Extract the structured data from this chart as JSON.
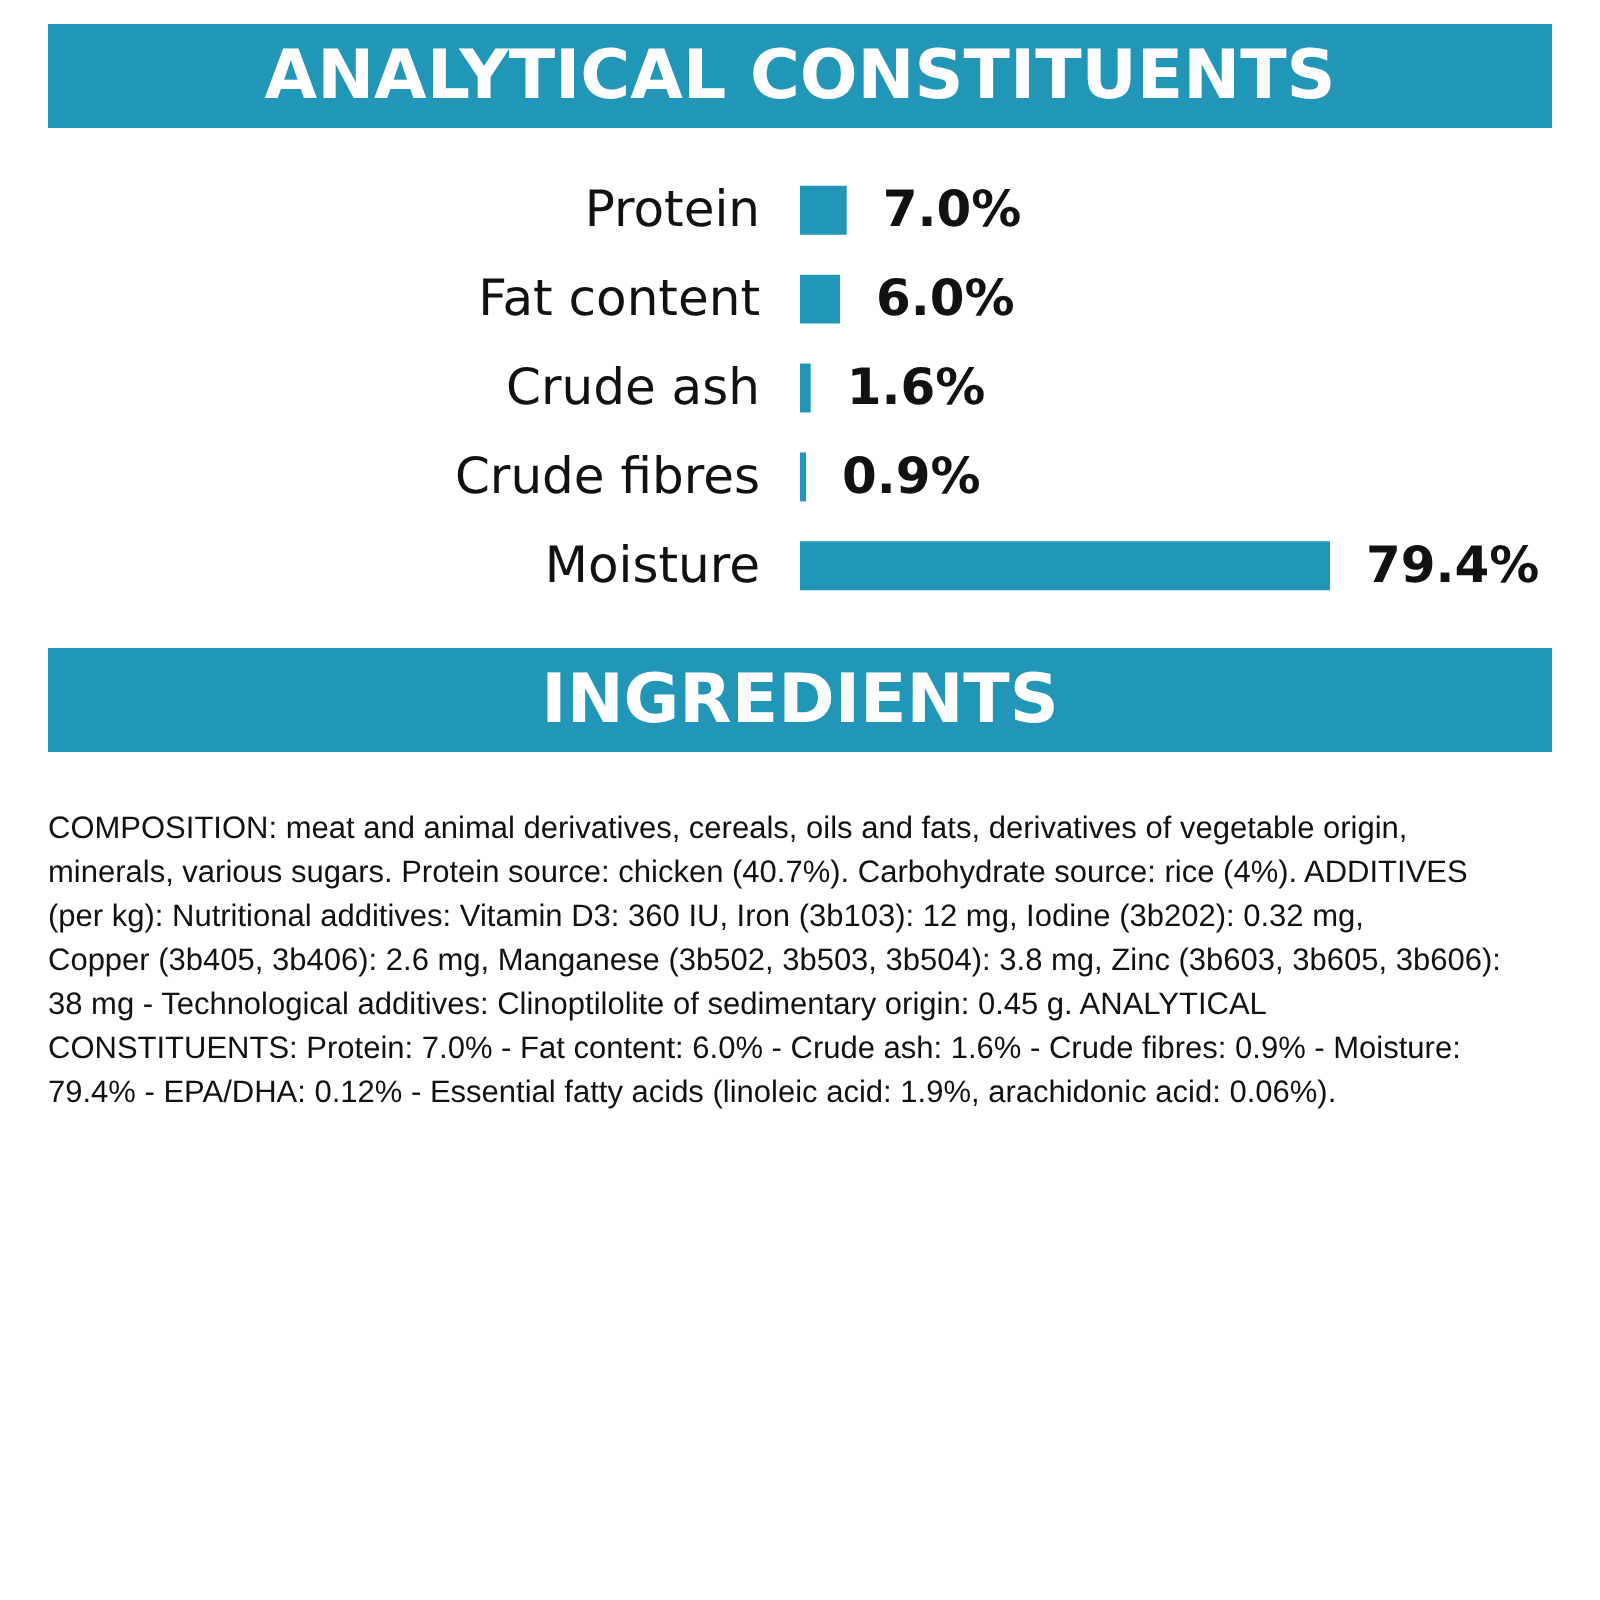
{
  "chart_data": {
    "type": "bar",
    "orientation": "horizontal",
    "title": "ANALYTICAL CONSTITUENTS",
    "categories": [
      "Protein",
      "Fat content",
      "Crude ash",
      "Crude fibres",
      "Moisture"
    ],
    "values": [
      7.0,
      6.0,
      1.6,
      0.9,
      79.4
    ],
    "value_labels": [
      "7.0%",
      "6.0%",
      "1.6%",
      "0.9%",
      "79.4%"
    ],
    "color": "#2196b6",
    "annotations": [
      "INGREDIENTS",
      "COMPOSITION: meat and animal derivatives, cereals, oils and fats, derivatives of vegetable origin, minerals, various sugars. Protein source: chicken (40.7%). Carbohydrate source: rice (4%). ADDITIVES (per kg): Nutritional additives: Vitamin D3: 360 IU, Iron (3b103): 12 mg, Iodine (3b202): 0.32 mg, Copper (3b405, 3b406): 2.6 mg, Manganese (3b502, 3b503, 3b504): 3.8 mg, Zinc (3b603, 3b605, 3b606): 38 mg - Technological additives: Clinoptilolite of sedimentary origin: 0.45 g. ANALYTICAL CONSTITUENTS: Protein: 7.0% - Fat content: 6.0% - Crude ash: 1.6% - Crude fibres: 0.9% - Moisture: 79.4% - EPA/DHA: 0.12% - Essential fatty acids (linoleic acid: 1.9%, arachidonic acid: 0.06%)."
    ]
  }
}
